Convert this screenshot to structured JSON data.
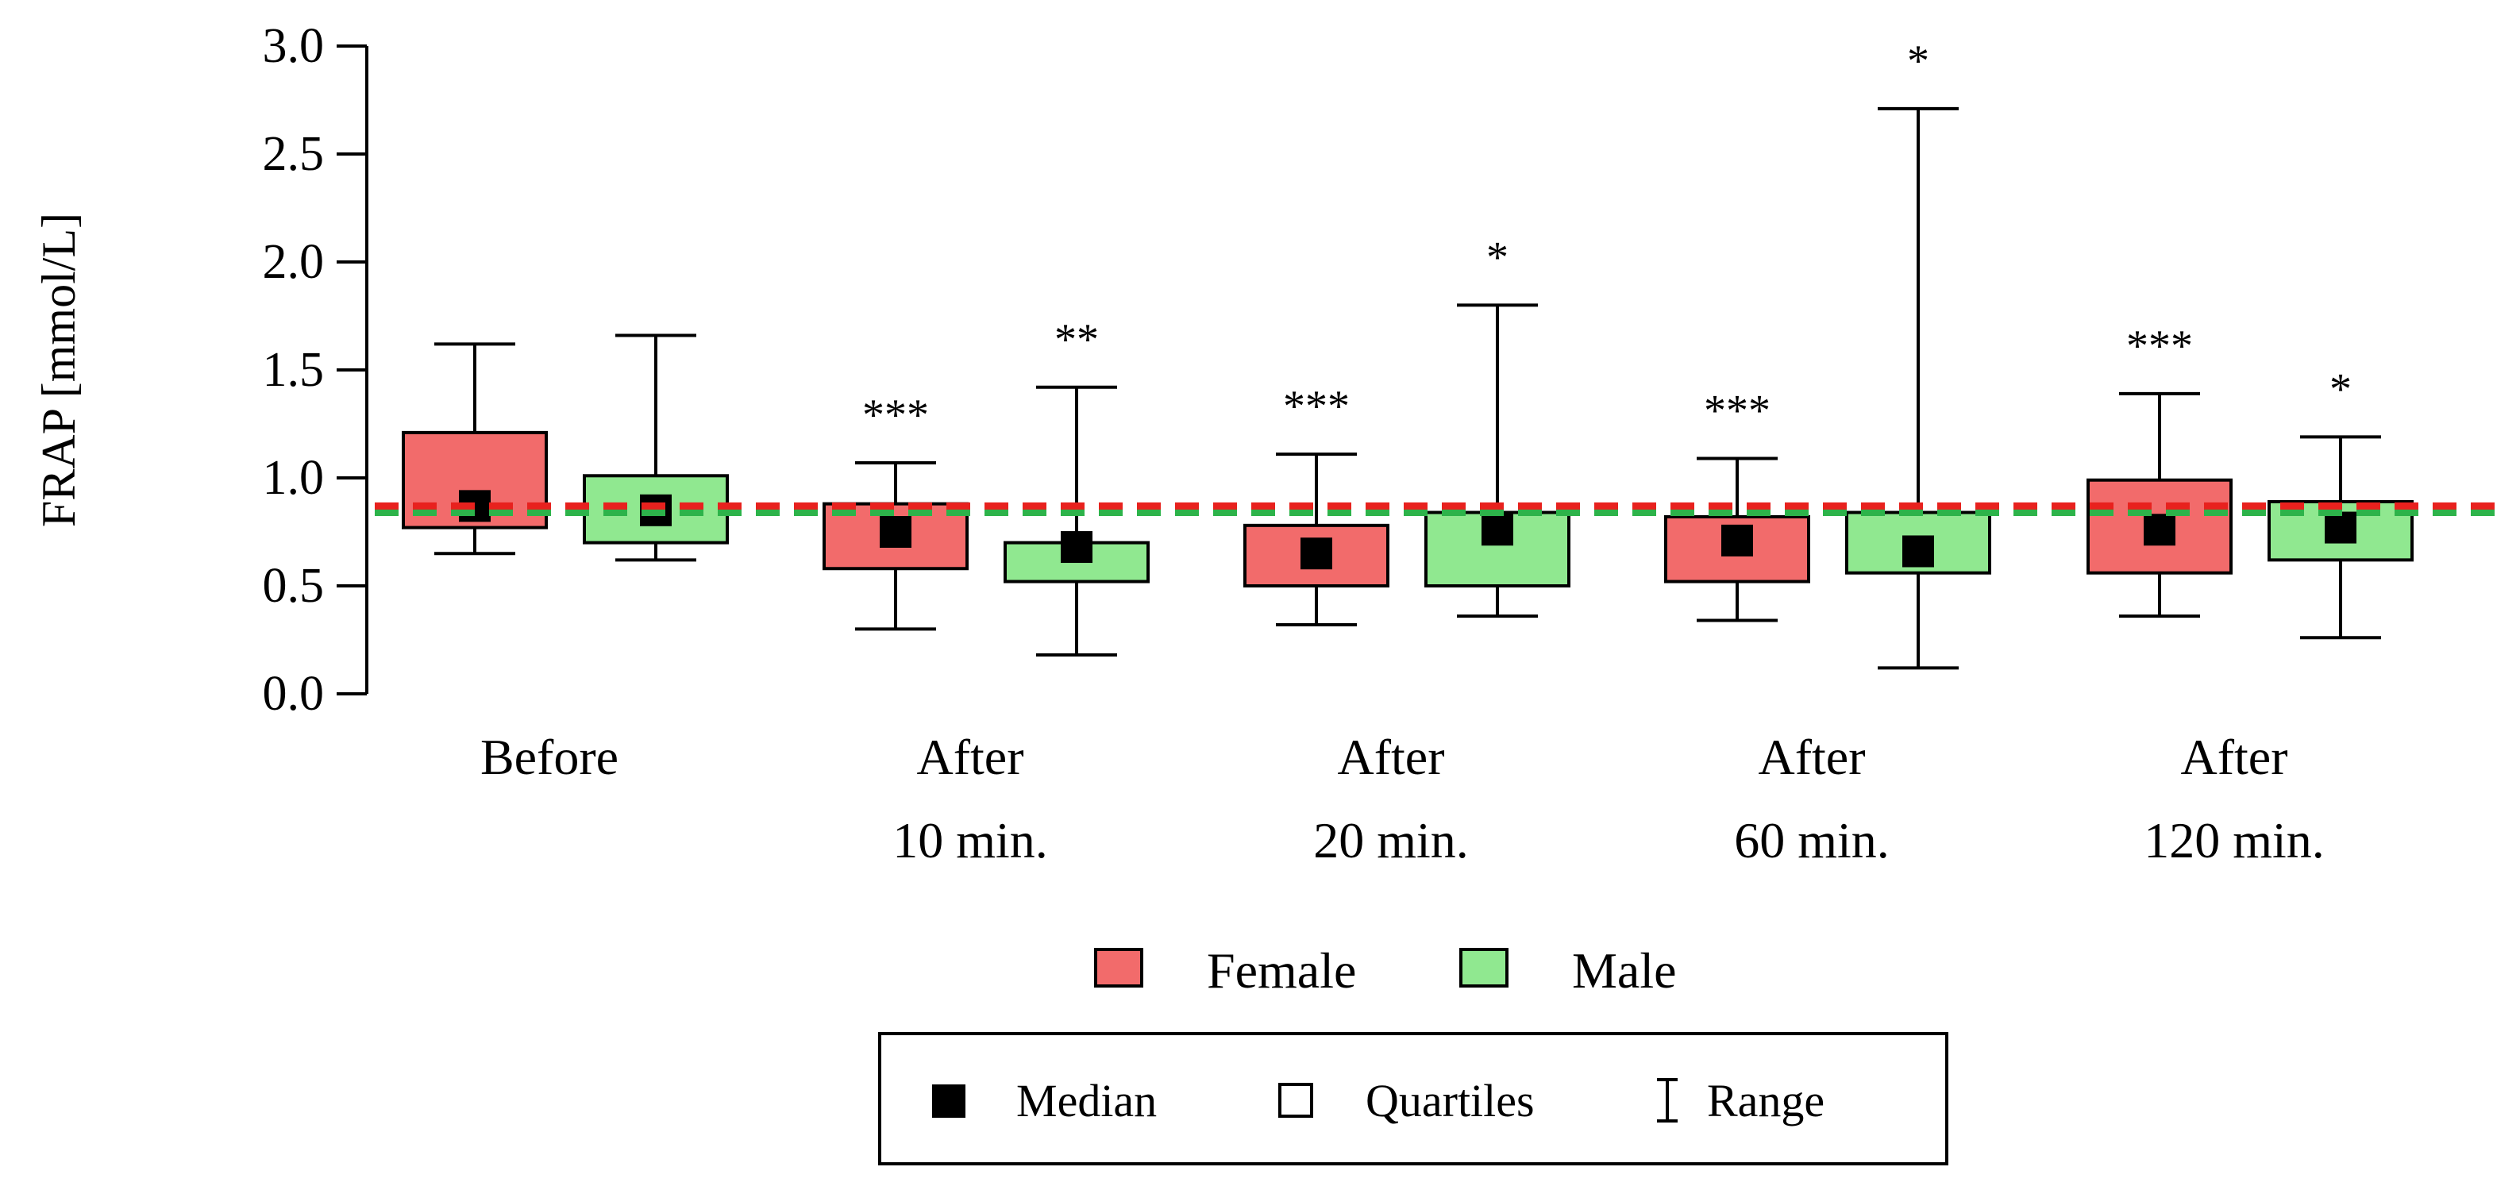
{
  "chart_data": {
    "type": "boxplot",
    "title": "",
    "ylabel": "FRAP [mmol/L]",
    "xlabel": "",
    "ylim": [
      0,
      3.0
    ],
    "yticks": [
      {
        "value": 0.0,
        "label": "0.0"
      },
      {
        "value": 0.5,
        "label": "0.5"
      },
      {
        "value": 1.0,
        "label": "1.0"
      },
      {
        "value": 1.5,
        "label": "1.5"
      },
      {
        "value": 2.0,
        "label": "2.0"
      },
      {
        "value": 2.5,
        "label": "2.5"
      },
      {
        "value": 3.0,
        "label": "3.0"
      }
    ],
    "categories": [
      {
        "line1": "Before",
        "line2": ""
      },
      {
        "line1": "After",
        "line2": "10 min."
      },
      {
        "line1": "After",
        "line2": "20 min."
      },
      {
        "line1": "After",
        "line2": "60 min."
      },
      {
        "line1": "After",
        "line2": "120 min."
      }
    ],
    "series": [
      {
        "name": "Female",
        "color": "#f26b6b",
        "reference_line": 0.87,
        "reference_color": "#e8211e",
        "boxes": [
          {
            "min": 0.65,
            "q1": 0.77,
            "median": 0.87,
            "q3": 1.21,
            "max": 1.62,
            "sig": ""
          },
          {
            "min": 0.3,
            "q1": 0.58,
            "median": 0.75,
            "q3": 0.88,
            "max": 1.07,
            "sig": "***"
          },
          {
            "min": 0.32,
            "q1": 0.5,
            "median": 0.65,
            "q3": 0.78,
            "max": 1.11,
            "sig": "***"
          },
          {
            "min": 0.34,
            "q1": 0.52,
            "median": 0.71,
            "q3": 0.82,
            "max": 1.09,
            "sig": "***"
          },
          {
            "min": 0.36,
            "q1": 0.56,
            "median": 0.76,
            "q3": 0.99,
            "max": 1.39,
            "sig": "***"
          }
        ]
      },
      {
        "name": "Male",
        "color": "#90e890",
        "reference_line": 0.84,
        "reference_color": "#2db34a",
        "boxes": [
          {
            "min": 0.62,
            "q1": 0.7,
            "median": 0.85,
            "q3": 1.01,
            "max": 1.66,
            "sig": ""
          },
          {
            "min": 0.18,
            "q1": 0.52,
            "median": 0.68,
            "q3": 0.7,
            "max": 1.42,
            "sig": "**"
          },
          {
            "min": 0.36,
            "q1": 0.5,
            "median": 0.76,
            "q3": 0.84,
            "max": 1.8,
            "sig": "*"
          },
          {
            "min": 0.12,
            "q1": 0.56,
            "median": 0.66,
            "q3": 0.84,
            "max": 2.71,
            "sig": "*"
          },
          {
            "min": 0.26,
            "q1": 0.62,
            "median": 0.77,
            "q3": 0.89,
            "max": 1.19,
            "sig": "*"
          }
        ]
      }
    ],
    "legend": {
      "series_entries": [
        "Female",
        "Male"
      ],
      "stat_entries": [
        {
          "symbol": "filled-square",
          "label": "Median"
        },
        {
          "symbol": "open-square",
          "label": "Quartiles"
        },
        {
          "symbol": "i-beam",
          "label": "Range"
        }
      ]
    }
  }
}
